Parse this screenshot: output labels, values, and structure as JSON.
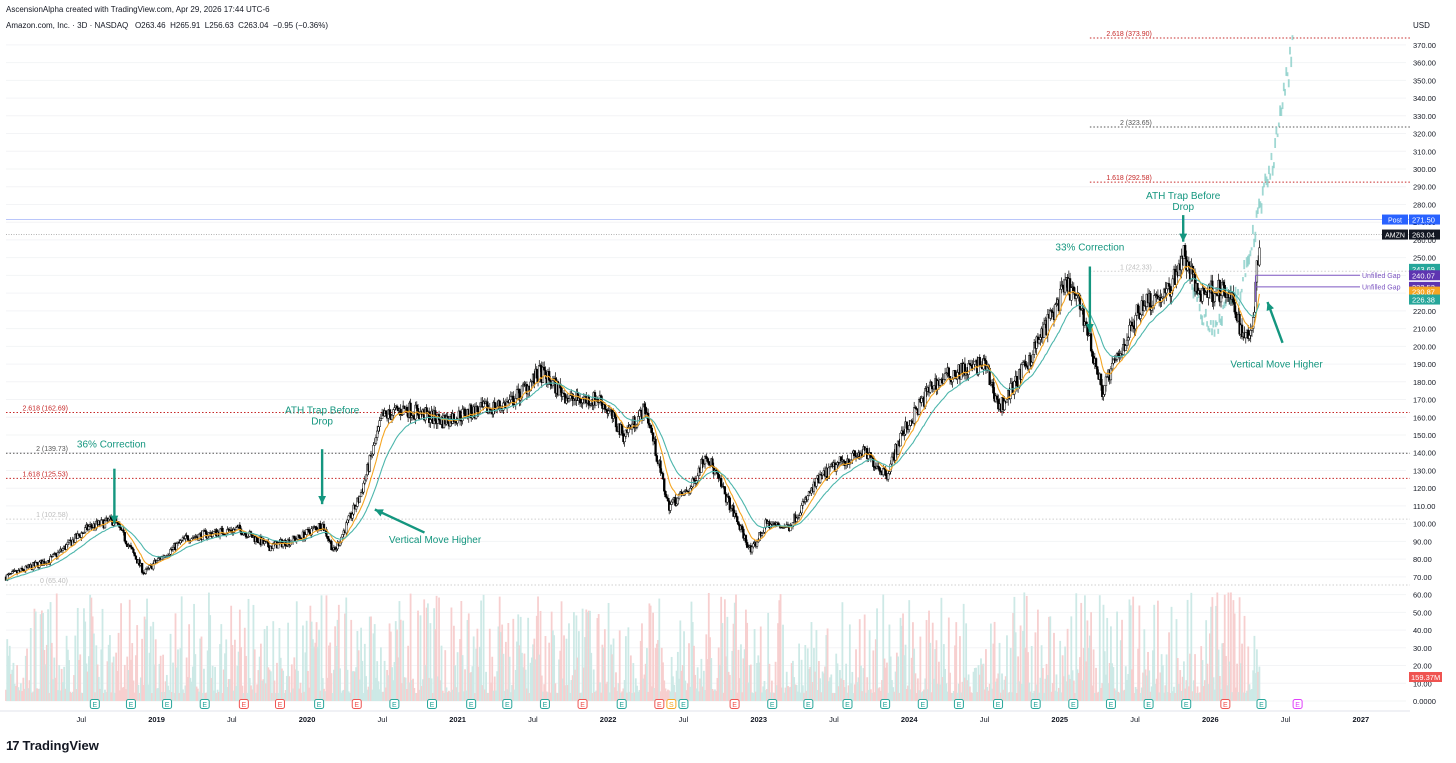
{
  "header": {
    "created_by": "AscensionAlpha created with TradingView.com, Apr 29, 2026 17:44 UTC-6",
    "symbol_line": "Amazon.com, Inc. · 3D · NASDAQ",
    "ohlc": {
      "o": "O263.46",
      "h": "H265.91",
      "l": "L256.63",
      "c": "C263.04",
      "change": "−0.95 (−0.36%)"
    }
  },
  "branding": {
    "name": "TradingView",
    "mark": "17"
  },
  "colors": {
    "up": "#26a69a",
    "down": "#ef5350",
    "ema_fast": "#f5a623",
    "ema_slow": "#4db6ac",
    "fib": "#c62828",
    "annotation": "#14967f",
    "gap": "#7e57c2",
    "projection": "#80cbc4"
  },
  "chart_data": {
    "type": "candlestick",
    "title": "Amazon.com, Inc. · 3D · NASDAQ",
    "currency": "USD",
    "ylim": [
      0,
      375
    ],
    "price_ticks": [
      "370.00",
      "360.00",
      "350.00",
      "340.00",
      "330.00",
      "320.00",
      "310.00",
      "300.00",
      "290.00",
      "280.00",
      "270.00",
      "260.00",
      "250.00",
      "240.00",
      "230.00",
      "220.00",
      "210.00",
      "200.00",
      "190.00",
      "180.00",
      "170.00",
      "160.00",
      "150.00",
      "140.00",
      "130.00",
      "120.00",
      "110.00",
      "100.00",
      "90.00",
      "80.00",
      "70.00",
      "60.00",
      "50.00",
      "40.00",
      "30.00",
      "20.00",
      "10.00",
      "0.0000"
    ],
    "time_axis": [
      {
        "label": "Jul",
        "t": 2018.5,
        "bold": false
      },
      {
        "label": "2019",
        "t": 2019.0,
        "bold": true
      },
      {
        "label": "Jul",
        "t": 2019.5,
        "bold": false
      },
      {
        "label": "2020",
        "t": 2020.0,
        "bold": true
      },
      {
        "label": "Jul",
        "t": 2020.5,
        "bold": false
      },
      {
        "label": "2021",
        "t": 2021.0,
        "bold": true
      },
      {
        "label": "Jul",
        "t": 2021.5,
        "bold": false
      },
      {
        "label": "2022",
        "t": 2022.0,
        "bold": true
      },
      {
        "label": "Jul",
        "t": 2022.5,
        "bold": false
      },
      {
        "label": "2023",
        "t": 2023.0,
        "bold": true
      },
      {
        "label": "Jul",
        "t": 2023.5,
        "bold": false
      },
      {
        "label": "2024",
        "t": 2024.0,
        "bold": true
      },
      {
        "label": "Jul",
        "t": 2024.5,
        "bold": false
      },
      {
        "label": "2025",
        "t": 2025.0,
        "bold": true
      },
      {
        "label": "Jul",
        "t": 2025.5,
        "bold": false
      },
      {
        "label": "2026",
        "t": 2026.0,
        "bold": true
      },
      {
        "label": "Jul",
        "t": 2026.5,
        "bold": false
      },
      {
        "label": "2027",
        "t": 2027.0,
        "bold": true
      }
    ],
    "price_anchors": [
      [
        2018.0,
        70
      ],
      [
        2018.3,
        80
      ],
      [
        2018.55,
        98
      ],
      [
        2018.72,
        102
      ],
      [
        2018.92,
        72
      ],
      [
        2019.0,
        79
      ],
      [
        2019.2,
        92
      ],
      [
        2019.4,
        95
      ],
      [
        2019.55,
        97
      ],
      [
        2019.75,
        87
      ],
      [
        2019.95,
        92
      ],
      [
        2020.1,
        100
      ],
      [
        2020.18,
        84
      ],
      [
        2020.35,
        115
      ],
      [
        2020.5,
        160
      ],
      [
        2020.65,
        165
      ],
      [
        2020.9,
        158
      ],
      [
        2021.05,
        162
      ],
      [
        2021.35,
        168
      ],
      [
        2021.55,
        185
      ],
      [
        2021.75,
        170
      ],
      [
        2021.95,
        170
      ],
      [
        2022.1,
        150
      ],
      [
        2022.25,
        165
      ],
      [
        2022.4,
        110
      ],
      [
        2022.55,
        120
      ],
      [
        2022.65,
        140
      ],
      [
        2022.8,
        112
      ],
      [
        2022.95,
        84
      ],
      [
        2023.05,
        100
      ],
      [
        2023.2,
        98
      ],
      [
        2023.4,
        125
      ],
      [
        2023.55,
        135
      ],
      [
        2023.7,
        140
      ],
      [
        2023.85,
        128
      ],
      [
        2023.95,
        150
      ],
      [
        2024.15,
        178
      ],
      [
        2024.3,
        185
      ],
      [
        2024.5,
        190
      ],
      [
        2024.6,
        165
      ],
      [
        2024.75,
        185
      ],
      [
        2024.9,
        210
      ],
      [
        2025.05,
        235
      ],
      [
        2025.15,
        220
      ],
      [
        2025.28,
        175
      ],
      [
        2025.42,
        200
      ],
      [
        2025.55,
        225
      ],
      [
        2025.72,
        230
      ],
      [
        2025.82,
        252
      ],
      [
        2025.92,
        230
      ],
      [
        2026.05,
        232
      ],
      [
        2026.15,
        225
      ],
      [
        2026.22,
        205
      ],
      [
        2026.28,
        212
      ],
      [
        2026.33,
        263
      ]
    ],
    "projection_anchors": [
      [
        2025.88,
        238
      ],
      [
        2025.95,
        215
      ],
      [
        2026.05,
        212
      ],
      [
        2026.12,
        232
      ],
      [
        2026.18,
        225
      ],
      [
        2026.25,
        250
      ],
      [
        2026.3,
        268
      ],
      [
        2026.35,
        285
      ],
      [
        2026.4,
        300
      ],
      [
        2026.45,
        320
      ],
      [
        2026.5,
        345
      ],
      [
        2026.55,
        372
      ]
    ],
    "series": [
      {
        "name": "EMA fast",
        "color": "#f5a623"
      },
      {
        "name": "EMA slow",
        "color": "#4db6ac"
      }
    ],
    "fib_levels": [
      {
        "label": "2.618 (373.90)",
        "value": 373.9,
        "t_start": 2025.2,
        "style": "fib"
      },
      {
        "label": "2 (323.65)",
        "value": 323.65,
        "t_start": 2025.2,
        "style": "gray"
      },
      {
        "label": "1.618 (292.58)",
        "value": 292.58,
        "t_start": 2025.2,
        "style": "fib"
      },
      {
        "label": "1 (242.33)",
        "value": 242.33,
        "t_start": 2025.2,
        "style": "faint"
      },
      {
        "label": "2.618 (162.69)",
        "value": 162.69,
        "t_start": 2018.0,
        "style": "fib"
      },
      {
        "label": "2 (139.73)",
        "value": 139.73,
        "t_start": 2018.0,
        "style": "gray"
      },
      {
        "label": "1.618 (125.53)",
        "value": 125.53,
        "t_start": 2018.0,
        "style": "fib"
      },
      {
        "label": "1 (102.58)",
        "value": 102.58,
        "t_start": 2018.0,
        "style": "faint"
      },
      {
        "label": "0 (65.40)",
        "value": 65.4,
        "t_start": 2018.0,
        "style": "faint"
      }
    ],
    "price_tags": [
      {
        "prefix": "Post",
        "value": "271.50",
        "y": 271.5,
        "bg": "#2962ff",
        "fg": "#ffffff"
      },
      {
        "prefix": "AMZN",
        "value": "263.04",
        "y": 263.04,
        "bg": "#131722",
        "fg": "#ffffff"
      },
      {
        "prefix": "",
        "value": "243.69",
        "y": 243.69,
        "bg": "#26a69a",
        "fg": "#ffffff"
      },
      {
        "prefix": "",
        "value": "240.07",
        "y": 240.07,
        "bg": "#5e35b1",
        "fg": "#ffffff"
      },
      {
        "prefix": "",
        "value": "233.53",
        "y": 233.53,
        "bg": "#5e35b1",
        "fg": "#ffffff"
      },
      {
        "prefix": "",
        "value": "230.87",
        "y": 230.87,
        "bg": "#f5a623",
        "fg": "#ffffff"
      },
      {
        "prefix": "",
        "value": "226.38",
        "y": 226.38,
        "bg": "#26a69a",
        "fg": "#ffffff"
      }
    ],
    "volume_tag": {
      "value": "159.37M",
      "bg": "#ef5350",
      "fg": "#ffffff"
    },
    "unfilled_gaps": [
      {
        "label": "Unfilled Gap",
        "value": 240.07
      },
      {
        "label": "Unfilled Gap",
        "value": 233.53
      }
    ],
    "annotations": [
      {
        "text": "36% Correction",
        "t": 2018.7,
        "price": 143,
        "arrow": [
          [
            2018.72,
            131
          ],
          [
            2018.72,
            100
          ]
        ]
      },
      {
        "text": "ATH Trap Before",
        "text2": "Drop",
        "t": 2020.1,
        "price": 162,
        "arrow": [
          [
            2020.1,
            142
          ],
          [
            2020.1,
            111
          ]
        ]
      },
      {
        "text": "Vertical Move Higher",
        "t": 2020.85,
        "price": 89,
        "arrow": [
          [
            2020.78,
            95
          ],
          [
            2020.45,
            108
          ]
        ]
      },
      {
        "text": "33% Correction",
        "t": 2025.2,
        "price": 254,
        "arrow": [
          [
            2025.2,
            245
          ],
          [
            2025.2,
            208
          ]
        ]
      },
      {
        "text": "ATH Trap Before",
        "text2": "Drop",
        "t": 2025.82,
        "price": 283,
        "arrow": [
          [
            2025.82,
            274
          ],
          [
            2025.82,
            259
          ]
        ]
      },
      {
        "text": "Vertical Move Higher",
        "t": 2026.44,
        "price": 188,
        "arrow": [
          [
            2026.48,
            202
          ],
          [
            2026.38,
            225
          ]
        ]
      }
    ],
    "earnings_markers": [
      {
        "t": 2018.59,
        "kind": "E",
        "color": "#26a69a"
      },
      {
        "t": 2018.83,
        "kind": "E",
        "color": "#26a69a"
      },
      {
        "t": 2019.07,
        "kind": "E",
        "color": "#26a69a"
      },
      {
        "t": 2019.32,
        "kind": "E",
        "color": "#26a69a"
      },
      {
        "t": 2019.58,
        "kind": "E",
        "color": "#ef5350"
      },
      {
        "t": 2019.82,
        "kind": "E",
        "color": "#ef5350"
      },
      {
        "t": 2020.08,
        "kind": "E",
        "color": "#26a69a"
      },
      {
        "t": 2020.33,
        "kind": "E",
        "color": "#ef5350"
      },
      {
        "t": 2020.58,
        "kind": "E",
        "color": "#26a69a"
      },
      {
        "t": 2020.83,
        "kind": "E",
        "color": "#26a69a"
      },
      {
        "t": 2021.09,
        "kind": "E",
        "color": "#26a69a"
      },
      {
        "t": 2021.33,
        "kind": "E",
        "color": "#26a69a"
      },
      {
        "t": 2021.58,
        "kind": "E",
        "color": "#26a69a"
      },
      {
        "t": 2021.83,
        "kind": "E",
        "color": "#ef5350"
      },
      {
        "t": 2022.09,
        "kind": "E",
        "color": "#26a69a"
      },
      {
        "t": 2022.34,
        "kind": "E",
        "color": "#ef5350"
      },
      {
        "t": 2022.42,
        "kind": "S",
        "color": "#f5a623"
      },
      {
        "t": 2022.5,
        "kind": "E",
        "color": "#26a69a"
      },
      {
        "t": 2022.84,
        "kind": "E",
        "color": "#ef5350"
      },
      {
        "t": 2023.09,
        "kind": "E",
        "color": "#26a69a"
      },
      {
        "t": 2023.33,
        "kind": "E",
        "color": "#26a69a"
      },
      {
        "t": 2023.59,
        "kind": "E",
        "color": "#26a69a"
      },
      {
        "t": 2023.84,
        "kind": "E",
        "color": "#26a69a"
      },
      {
        "t": 2024.09,
        "kind": "E",
        "color": "#26a69a"
      },
      {
        "t": 2024.33,
        "kind": "E",
        "color": "#26a69a"
      },
      {
        "t": 2024.59,
        "kind": "E",
        "color": "#26a69a"
      },
      {
        "t": 2024.84,
        "kind": "E",
        "color": "#26a69a"
      },
      {
        "t": 2025.09,
        "kind": "E",
        "color": "#26a69a"
      },
      {
        "t": 2025.34,
        "kind": "E",
        "color": "#26a69a"
      },
      {
        "t": 2025.59,
        "kind": "E",
        "color": "#26a69a"
      },
      {
        "t": 2025.84,
        "kind": "E",
        "color": "#26a69a"
      },
      {
        "t": 2026.1,
        "kind": "E",
        "color": "#ef5350"
      },
      {
        "t": 2026.34,
        "kind": "E",
        "color": "#26a69a"
      },
      {
        "t": 2026.58,
        "kind": "E",
        "color": "#e040fb"
      }
    ]
  }
}
